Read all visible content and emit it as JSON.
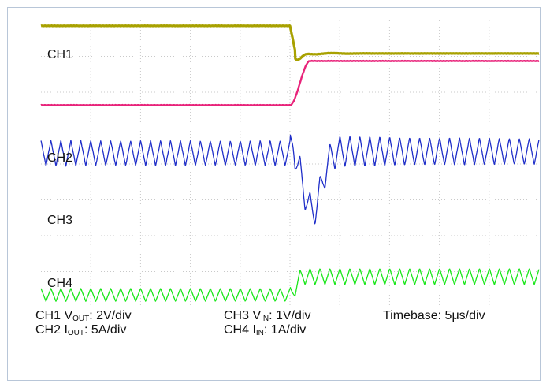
{
  "chart_data": {
    "type": "line",
    "title": "",
    "xlabel": "",
    "ylabel": "",
    "grid": true,
    "grid_divisions": {
      "x": 10,
      "y": 8
    },
    "x_units": "divisions",
    "xlim": [
      0,
      10
    ],
    "ylim": [
      0,
      8
    ],
    "transient_at_div": 5.0,
    "series": [
      {
        "label": "CH1",
        "color": "#a8a100",
        "before_div": 7.85,
        "after_div": 7.08,
        "dip_div": 6.85,
        "ripple_div": 0.02
      },
      {
        "label": "CH2",
        "color": "#e8237a",
        "before_div": 5.64,
        "after_div": 6.87,
        "ripple_div": 0.03
      },
      {
        "label": "CH3",
        "color": "#1f2ec9",
        "before_div": 4.3,
        "after_div": 4.35,
        "dip_div": 2.7,
        "ripple_div": 0.35
      },
      {
        "label": "CH4",
        "color": "#19e619",
        "before_div": 0.35,
        "after_div": 0.86,
        "ripple_div": 0.18
      }
    ]
  },
  "captions": {
    "ch1_prefix": "CH1 V",
    "ch1_sub": "OUT",
    "ch1_suffix": ": 2V/div",
    "ch2_prefix": "CH2 I",
    "ch2_sub": "OUT",
    "ch2_suffix": ": 5A/div",
    "ch3_prefix": "CH3 V",
    "ch3_sub": "IN",
    "ch3_suffix": ": 1V/div",
    "ch4_prefix": "CH4 I",
    "ch4_sub": "IN",
    "ch4_suffix": ": 1A/div",
    "timebase": "Timebase: 5μs/div"
  }
}
